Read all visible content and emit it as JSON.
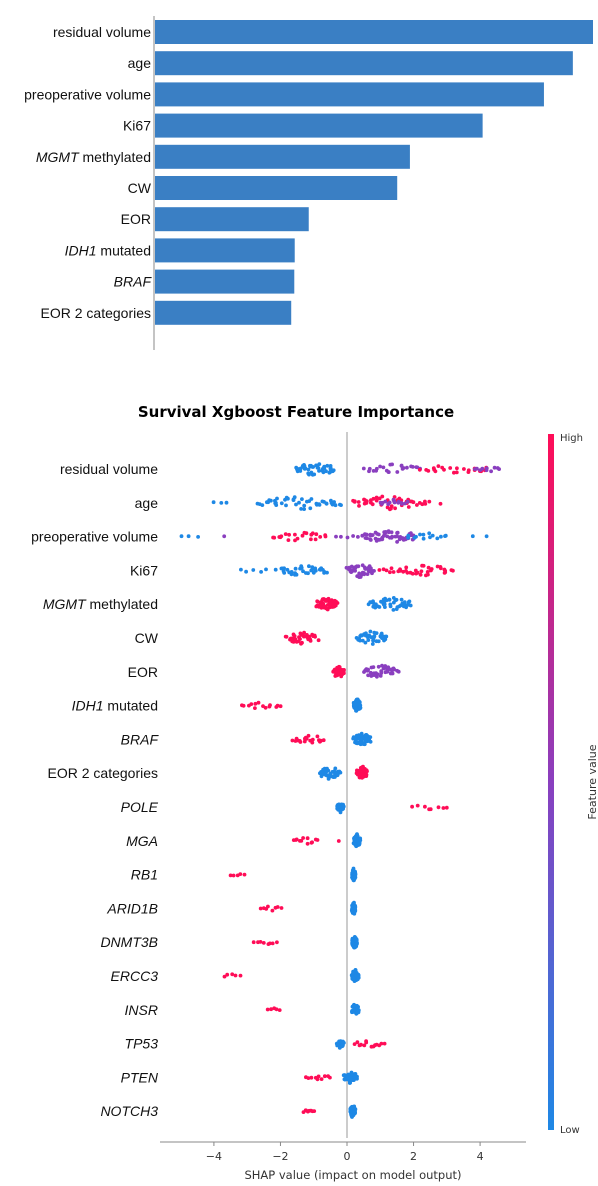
{
  "colors": {
    "bar": "#3a7fc4",
    "low": "#1e88e5",
    "high": "#ff0d57",
    "mid": "#8a3fbf",
    "zero_line": "#999999",
    "axis": "#888888"
  },
  "chart_data": [
    {
      "type": "bar",
      "orientation": "horizontal",
      "title": "",
      "categories": [
        {
          "label": "residual volume",
          "italic": "",
          "plain": "residual volume"
        },
        {
          "label": "age",
          "italic": "",
          "plain": "age"
        },
        {
          "label": "preoperative volume",
          "italic": "",
          "plain": "preoperative volume"
        },
        {
          "label": "Ki67",
          "italic": "",
          "plain": "Ki67"
        },
        {
          "label": "MGMT methylated",
          "italic": "MGMT",
          "plain": " methylated"
        },
        {
          "label": "CW",
          "italic": "",
          "plain": "CW"
        },
        {
          "label": "EOR",
          "italic": "",
          "plain": "EOR"
        },
        {
          "label": "IDH1 mutated",
          "italic": "IDH1",
          "plain": " mutated"
        },
        {
          "label": "BRAF",
          "italic": "BRAF",
          "plain": ""
        },
        {
          "label": "EOR 2 categories",
          "italic": "",
          "plain": "EOR 2 categories"
        }
      ],
      "values": [
        1.0,
        0.954,
        0.888,
        0.748,
        0.582,
        0.553,
        0.351,
        0.319,
        0.318,
        0.311
      ],
      "xlim": [
        0,
        1.0
      ],
      "grid": false
    },
    {
      "type": "scatter",
      "subtype": "beeswarm",
      "title": "Survival Xgboost Feature Importance",
      "xlabel": "SHAP value (impact on model output)",
      "xlim": [
        -5.5,
        5.5
      ],
      "xticks": [
        {
          "value": -4,
          "label": "−4"
        },
        {
          "value": -2,
          "label": "−2"
        },
        {
          "value": 0,
          "label": "0"
        },
        {
          "value": 2,
          "label": "2"
        },
        {
          "value": 4,
          "label": "4"
        }
      ],
      "colorbar": {
        "title": "Feature value",
        "high_label": "High",
        "low_label": "Low"
      },
      "features": [
        {
          "label": "residual volume",
          "italic": "",
          "plain": "residual volume",
          "clusters": [
            {
              "min": -1.5,
              "max": -0.4,
              "n": 45,
              "color": "low"
            },
            {
              "min": 0.6,
              "max": 2.2,
              "n": 24,
              "color": "mid"
            },
            {
              "min": 2.3,
              "max": 4.2,
              "n": 22,
              "color": "high"
            },
            {
              "min": 3.8,
              "max": 4.6,
              "n": 10,
              "color": "mid"
            }
          ]
        },
        {
          "label": "age",
          "italic": "",
          "plain": "age",
          "clusters": [
            {
              "min": -4.0,
              "max": -3.6,
              "n": 3,
              "color": "low"
            },
            {
              "min": -2.6,
              "max": -0.2,
              "n": 45,
              "color": "low"
            },
            {
              "min": 0.2,
              "max": 2.4,
              "n": 45,
              "color": "high"
            },
            {
              "min": 1.0,
              "max": 1.8,
              "n": 16,
              "color": "mid"
            },
            {
              "min": 2.7,
              "max": 2.9,
              "n": 1,
              "color": "high"
            }
          ]
        },
        {
          "label": "preoperative volume",
          "italic": "",
          "plain": "preoperative volume",
          "clusters": [
            {
              "min": -5.0,
              "max": -4.5,
              "n": 3,
              "color": "low"
            },
            {
              "min": -3.8,
              "max": -3.6,
              "n": 1,
              "color": "mid"
            },
            {
              "min": -2.2,
              "max": -0.6,
              "n": 22,
              "color": "high"
            },
            {
              "min": -0.3,
              "max": 0.3,
              "n": 5,
              "color": "mid"
            },
            {
              "min": 0.5,
              "max": 2.0,
              "n": 55,
              "color": "mid"
            },
            {
              "min": 1.8,
              "max": 3.0,
              "n": 14,
              "color": "low"
            },
            {
              "min": 3.8,
              "max": 4.2,
              "n": 2,
              "color": "low"
            }
          ]
        },
        {
          "label": "Ki67",
          "italic": "",
          "plain": "Ki67",
          "clusters": [
            {
              "min": -3.2,
              "max": -2.2,
              "n": 6,
              "color": "low"
            },
            {
              "min": -2.0,
              "max": -0.6,
              "n": 35,
              "color": "low"
            },
            {
              "min": 0.0,
              "max": 0.8,
              "n": 40,
              "color": "mid"
            },
            {
              "min": 1.0,
              "max": 1.6,
              "n": 8,
              "color": "high"
            },
            {
              "min": 1.6,
              "max": 3.1,
              "n": 30,
              "color": "high"
            }
          ]
        },
        {
          "label": "MGMT methylated",
          "italic": "MGMT",
          "plain": " methylated",
          "clusters": [
            {
              "min": -0.9,
              "max": -0.3,
              "n": 55,
              "color": "high"
            },
            {
              "min": 0.7,
              "max": 1.9,
              "n": 45,
              "color": "low"
            }
          ]
        },
        {
          "label": "CW",
          "italic": "",
          "plain": "CW",
          "clusters": [
            {
              "min": -1.8,
              "max": -0.9,
              "n": 38,
              "color": "high"
            },
            {
              "min": 0.3,
              "max": 1.2,
              "n": 45,
              "color": "low"
            }
          ]
        },
        {
          "label": "EOR",
          "italic": "",
          "plain": "EOR",
          "clusters": [
            {
              "min": -0.4,
              "max": -0.1,
              "n": 40,
              "color": "high"
            },
            {
              "min": 0.5,
              "max": 1.5,
              "n": 40,
              "color": "mid"
            }
          ]
        },
        {
          "label": "IDH1 mutated",
          "italic": "IDH1",
          "plain": " mutated",
          "clusters": [
            {
              "min": -3.2,
              "max": -2.0,
              "n": 14,
              "color": "high"
            },
            {
              "min": 0.2,
              "max": 0.4,
              "n": 50,
              "color": "low"
            }
          ]
        },
        {
          "label": "BRAF",
          "italic": "BRAF",
          "plain": "",
          "clusters": [
            {
              "min": -1.6,
              "max": -0.7,
              "n": 20,
              "color": "high"
            },
            {
              "min": 0.2,
              "max": 0.7,
              "n": 45,
              "color": "low"
            }
          ]
        },
        {
          "label": "EOR 2 categories",
          "italic": "",
          "plain": "EOR 2 categories",
          "clusters": [
            {
              "min": -0.8,
              "max": -0.2,
              "n": 40,
              "color": "low"
            },
            {
              "min": 0.3,
              "max": 0.6,
              "n": 45,
              "color": "high"
            }
          ]
        },
        {
          "label": "POLE",
          "italic": "POLE",
          "plain": "",
          "clusters": [
            {
              "min": -0.3,
              "max": -0.1,
              "n": 30,
              "color": "low"
            },
            {
              "min": 2.0,
              "max": 3.0,
              "n": 8,
              "color": "high"
            }
          ]
        },
        {
          "label": "MGA",
          "italic": "MGA",
          "plain": "",
          "clusters": [
            {
              "min": -1.6,
              "max": -0.9,
              "n": 12,
              "color": "high"
            },
            {
              "min": -0.3,
              "max": -0.2,
              "n": 1,
              "color": "high"
            },
            {
              "min": 0.2,
              "max": 0.4,
              "n": 45,
              "color": "low"
            }
          ]
        },
        {
          "label": "RB1",
          "italic": "RB1",
          "plain": "",
          "clusters": [
            {
              "min": -3.5,
              "max": -3.1,
              "n": 5,
              "color": "high"
            },
            {
              "min": 0.15,
              "max": 0.25,
              "n": 50,
              "color": "low"
            }
          ]
        },
        {
          "label": "ARID1B",
          "italic": "ARID1B",
          "plain": "",
          "clusters": [
            {
              "min": -2.6,
              "max": -2.0,
              "n": 8,
              "color": "high"
            },
            {
              "min": 0.15,
              "max": 0.25,
              "n": 50,
              "color": "low"
            }
          ]
        },
        {
          "label": "DNMT3B",
          "italic": "DNMT3B",
          "plain": "",
          "clusters": [
            {
              "min": -2.8,
              "max": -2.1,
              "n": 8,
              "color": "high"
            },
            {
              "min": 0.15,
              "max": 0.3,
              "n": 50,
              "color": "low"
            }
          ]
        },
        {
          "label": "ERCC3",
          "italic": "ERCC3",
          "plain": "",
          "clusters": [
            {
              "min": -3.7,
              "max": -3.2,
              "n": 5,
              "color": "high"
            },
            {
              "min": 0.15,
              "max": 0.35,
              "n": 50,
              "color": "low"
            }
          ]
        },
        {
          "label": "INSR",
          "italic": "INSR",
          "plain": "",
          "clusters": [
            {
              "min": -2.4,
              "max": -2.0,
              "n": 5,
              "color": "high"
            },
            {
              "min": 0.15,
              "max": 0.35,
              "n": 50,
              "color": "low"
            }
          ]
        },
        {
          "label": "TP53",
          "italic": "TP53",
          "plain": "",
          "clusters": [
            {
              "min": -0.3,
              "max": -0.1,
              "n": 25,
              "color": "low"
            },
            {
              "min": 0.2,
              "max": 1.1,
              "n": 14,
              "color": "high"
            }
          ]
        },
        {
          "label": "PTEN",
          "italic": "PTEN",
          "plain": "",
          "clusters": [
            {
              "min": -1.2,
              "max": -0.5,
              "n": 10,
              "color": "high"
            },
            {
              "min": -0.1,
              "max": 0.3,
              "n": 40,
              "color": "low"
            }
          ]
        },
        {
          "label": "NOTCH3",
          "italic": "NOTCH3",
          "plain": "",
          "clusters": [
            {
              "min": -1.3,
              "max": -1.0,
              "n": 8,
              "color": "high"
            },
            {
              "min": 0.1,
              "max": 0.25,
              "n": 50,
              "color": "low"
            }
          ]
        }
      ]
    }
  ]
}
